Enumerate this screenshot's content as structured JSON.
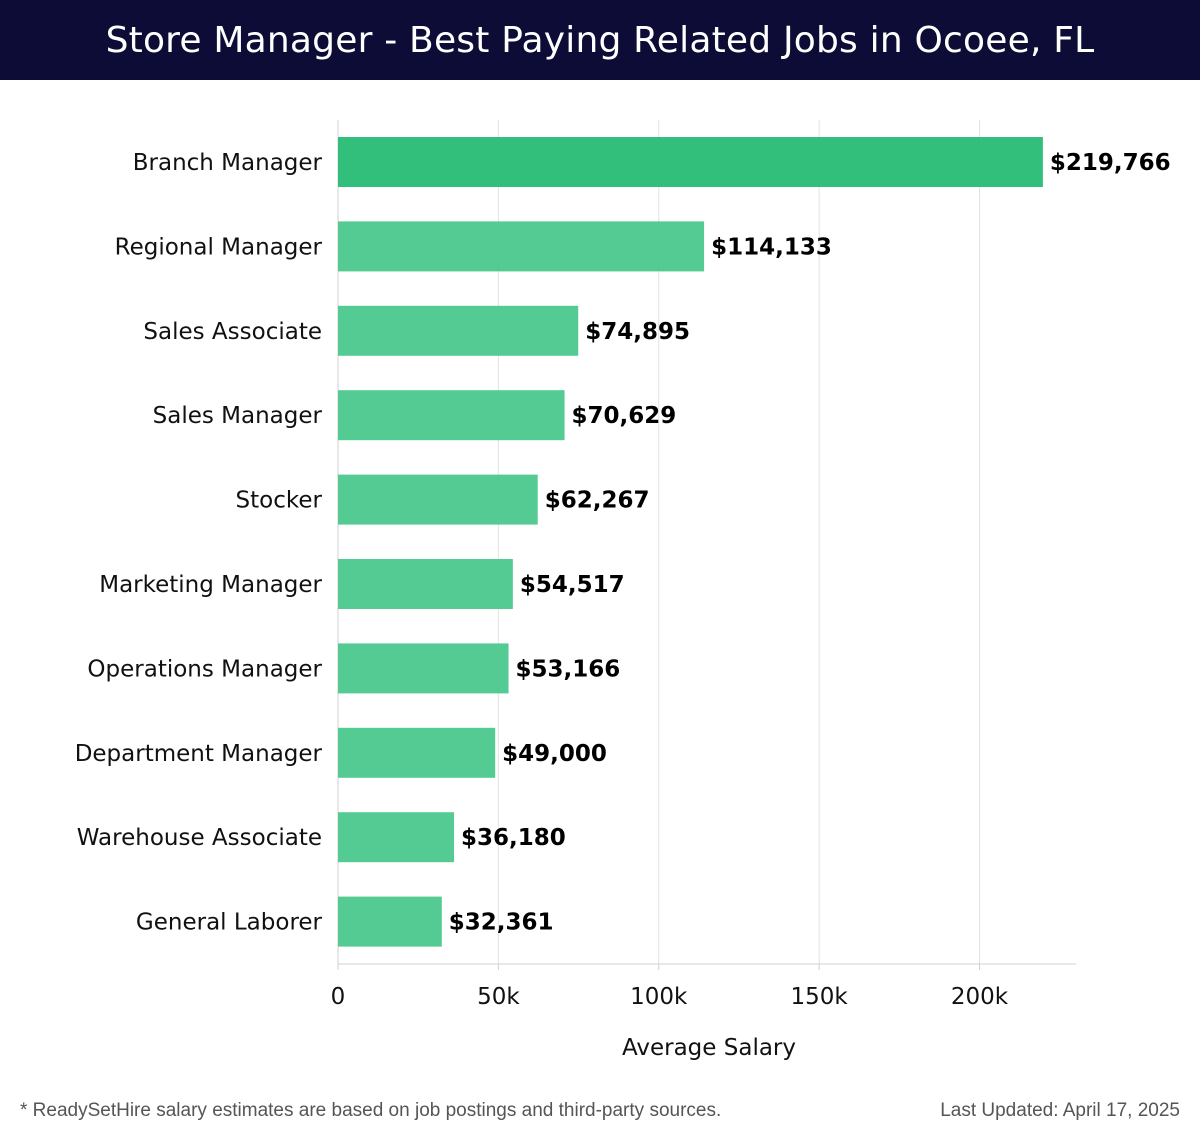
{
  "header": {
    "title": "Store Manager - Best Paying Related Jobs in Ocoee, FL"
  },
  "footer": {
    "note": "* ReadySetHire salary estimates are based on job postings and third-party sources.",
    "updated": "Last Updated: April 17, 2025"
  },
  "colors": {
    "header_bg": "#0c0c36",
    "top_bar": "#2bbd77",
    "bar": "#4ec98f"
  },
  "chart_data": {
    "type": "bar",
    "orientation": "horizontal",
    "categories": [
      "Branch Manager",
      "Regional Manager",
      "Sales Associate",
      "Sales Manager",
      "Stocker",
      "Marketing Manager",
      "Operations Manager",
      "Department Manager",
      "Warehouse Associate",
      "General Laborer"
    ],
    "values": [
      219766,
      114133,
      74895,
      70629,
      62267,
      54517,
      53166,
      49000,
      36180,
      32361
    ],
    "value_labels": [
      "$219,766",
      "$114,133",
      "$74,895",
      "$70,629",
      "$62,267",
      "$54,517",
      "$53,166",
      "$49,000",
      "$36,180",
      "$32,361"
    ],
    "xlabel": "Average Salary",
    "ylabel": "",
    "xlim": [
      0,
      230000
    ],
    "x_ticks": [
      0,
      50000,
      100000,
      150000,
      200000
    ],
    "x_tick_labels": [
      "0",
      "50k",
      "100k",
      "150k",
      "200k"
    ],
    "grid": "vertical"
  }
}
